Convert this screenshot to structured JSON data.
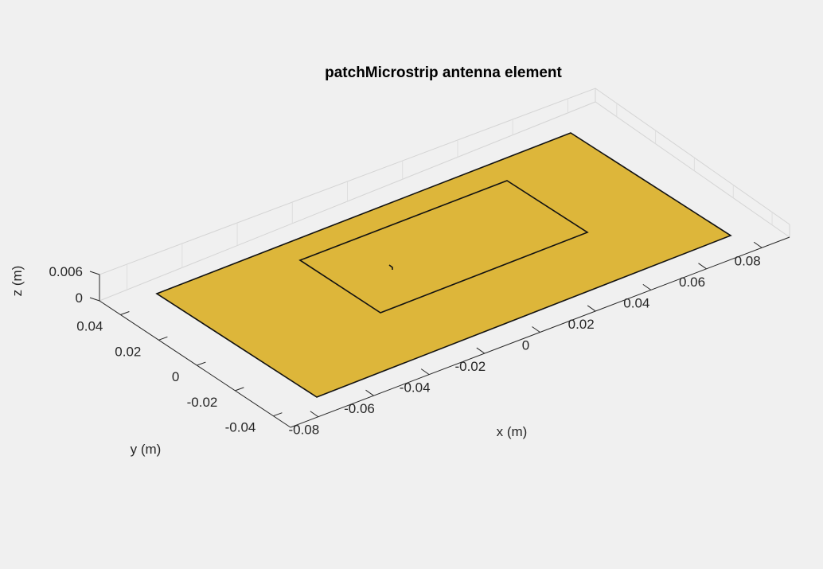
{
  "figure": {
    "title": "patchMicrostrip antenna element",
    "background": "#f0f0f0",
    "plot_background": "#ffffff"
  },
  "axes": {
    "x": {
      "label": "x (m)",
      "ticks": [
        "-0.08",
        "-0.06",
        "-0.04",
        "-0.02",
        "0",
        "0.02",
        "0.04",
        "0.06",
        "0.08"
      ]
    },
    "y": {
      "label": "y (m)",
      "ticks": [
        "-0.04",
        "-0.02",
        "0",
        "0.02",
        "0.04"
      ]
    },
    "z": {
      "label": "z (m)",
      "ticks": [
        "0",
        "0.006"
      ]
    },
    "grid": true
  },
  "chart_data": {
    "type": "3d-surface",
    "title": "patchMicrostrip antenna element",
    "xlabel": "x (m)",
    "ylabel": "y (m)",
    "zlabel": "z (m)",
    "xlim": [
      -0.09,
      0.09
    ],
    "ylim": [
      -0.05,
      0.05
    ],
    "zlim": [
      0,
      0.006
    ],
    "ground_plane": {
      "color": "#ddb63a",
      "x": [
        -0.075,
        0.075
      ],
      "y": [
        -0.0375,
        0.0375
      ],
      "z": 0
    },
    "patch_outline": {
      "x": [
        -0.0375,
        0.0375
      ],
      "y": [
        -0.01875,
        0.01875
      ],
      "z": 0.0016
    },
    "feed": {
      "x": -0.0187,
      "y": 0,
      "z": 0.0016
    }
  }
}
